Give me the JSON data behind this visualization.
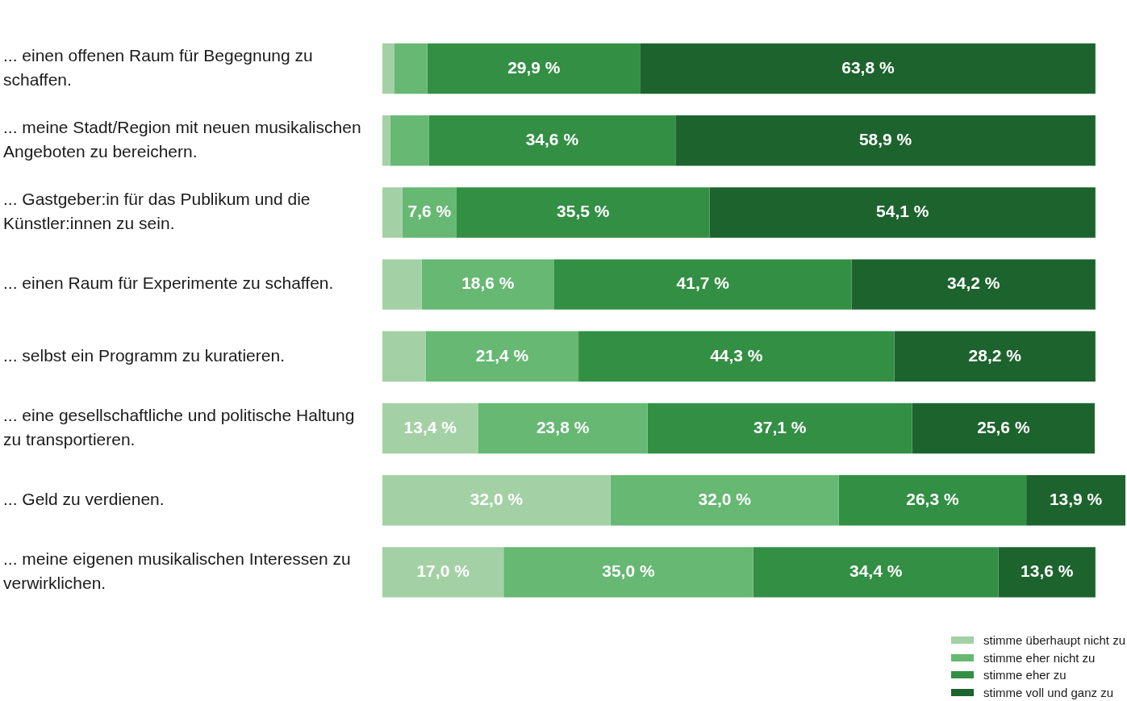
{
  "chart_data": {
    "type": "bar",
    "orientation": "horizontal",
    "stacked": true,
    "xlim": [
      0,
      104.2
    ],
    "tick_labels": "y",
    "grid": false,
    "legend": "bottom right",
    "categories": [
      "... einen offenen Raum für Begegnung zu schaffen.",
      "... meine Stadt/Region mit neuen musikalischen Angeboten zu bereichern.",
      "... Gastgeber:in für das Publikum und die Künstler:innen zu sein.",
      "... einen Raum für Experimente zu schaffen.",
      "... selbst ein Programm zu kuratieren.",
      "... eine gesellschaftliche und politische Haltung zu transportieren.",
      "... Geld zu verdienen.",
      "... meine eigenen musikalischen Interessen zu verwirklichen."
    ],
    "series": [
      {
        "name": "stimme überhaupt nicht zu",
        "color": "#a3d1a5",
        "values": [
          1.7,
          1.1,
          2.8,
          5.5,
          6.1,
          13.4,
          32.0,
          17.0
        ],
        "value_labels": [
          null,
          null,
          null,
          null,
          null,
          "13,4 %",
          "32,0 %",
          "17,0 %"
        ]
      },
      {
        "name": "stimme eher nicht zu",
        "color": "#66b873",
        "values": [
          4.6,
          5.4,
          7.6,
          18.6,
          21.4,
          23.8,
          32.0,
          35.0
        ],
        "value_labels": [
          null,
          null,
          "7,6 %",
          "18,6 %",
          "21,4 %",
          "23,8 %",
          "32,0 %",
          "35,0 %"
        ]
      },
      {
        "name": "stimme eher zu",
        "color": "#338f44",
        "values": [
          29.9,
          34.6,
          35.5,
          41.7,
          44.3,
          37.1,
          26.3,
          34.4
        ],
        "value_labels": [
          "29,9 %",
          "34,6 %",
          "35,5 %",
          "41,7 %",
          "44,3 %",
          "37,1 %",
          "26,3 %",
          "34,4 %"
        ]
      },
      {
        "name": "stimme voll und ganz zu",
        "color": "#1d632d",
        "values": [
          63.8,
          58.9,
          54.1,
          34.2,
          28.2,
          25.6,
          13.9,
          13.6
        ],
        "value_labels": [
          "63,8 %",
          "58,9 %",
          "54,1 %",
          "34,2 %",
          "28,2 %",
          "25,6 %",
          "13,9 %",
          "13,6 %"
        ]
      }
    ]
  }
}
